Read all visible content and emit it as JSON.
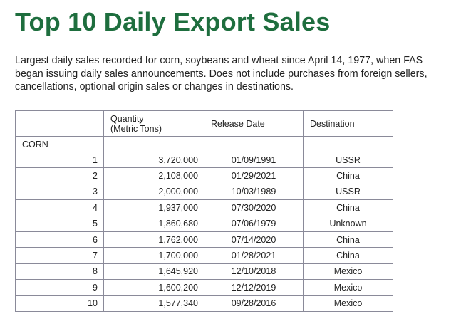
{
  "page": {
    "title": "Top 10 Daily Export Sales",
    "intro": "Largest daily sales recorded for corn, soybeans and wheat since April 14, 1977, when FAS began issuing daily sales announcements. Does not include purchases from foreign sellers, cancellations, optional origin sales or changes in destinations."
  },
  "table": {
    "headers": {
      "quantity_line1": "Quantity",
      "quantity_line2": "(Metric Tons)",
      "release_date": "Release Date",
      "destination": "Destination"
    },
    "sections": [
      {
        "name": "CORN",
        "rows": [
          {
            "rank": "1",
            "quantity": "3,720,000",
            "date": "01/09/1991",
            "destination": "USSR"
          },
          {
            "rank": "2",
            "quantity": "2,108,000",
            "date": "01/29/2021",
            "destination": "China"
          },
          {
            "rank": "3",
            "quantity": "2,000,000",
            "date": "10/03/1989",
            "destination": "USSR"
          },
          {
            "rank": "4",
            "quantity": "1,937,000",
            "date": "07/30/2020",
            "destination": "China"
          },
          {
            "rank": "5",
            "quantity": "1,860,680",
            "date": "07/06/1979",
            "destination": "Unknown"
          },
          {
            "rank": "6",
            "quantity": "1,762,000",
            "date": "07/14/2020",
            "destination": "China"
          },
          {
            "rank": "7",
            "quantity": "1,700,000",
            "date": "01/28/2021",
            "destination": "China"
          },
          {
            "rank": "8",
            "quantity": "1,645,920",
            "date": "12/10/2018",
            "destination": "Mexico"
          },
          {
            "rank": "9",
            "quantity": "1,600,200",
            "date": "12/12/2019",
            "destination": "Mexico"
          },
          {
            "rank": "10",
            "quantity": "1,577,340",
            "date": "09/28/2016",
            "destination": "Mexico"
          }
        ]
      }
    ]
  }
}
